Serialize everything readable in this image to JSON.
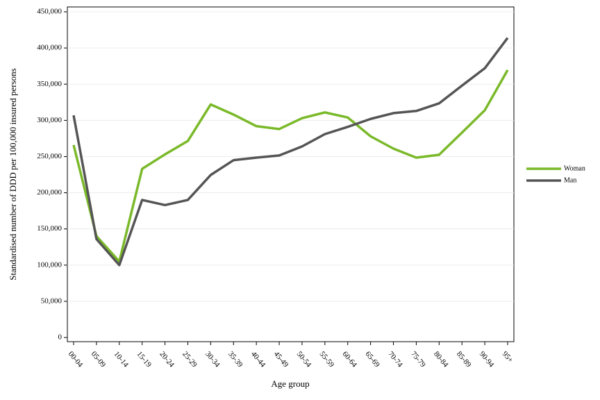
{
  "chart_data": {
    "type": "line",
    "x_label": "Age group",
    "y_label": "Standardised number of DDD per 100,000 insured persons",
    "categories": [
      "00-04",
      "05-09",
      "10-14",
      "15-19",
      "20-24",
      "25-29",
      "30-34",
      "35-39",
      "40-44",
      "45-49",
      "50-54",
      "55-59",
      "60-64",
      "65-69",
      "70-74",
      "75-79",
      "80-84",
      "85-89",
      "90-94",
      "95+"
    ],
    "series": [
      {
        "name": "Woman",
        "color": "#7ab929",
        "values": [
          266000,
          140000,
          105000,
          233000,
          253000,
          271500,
          322000,
          308000,
          292000,
          288000,
          303000,
          311000,
          304000,
          278000,
          261000,
          248500,
          252500,
          283000,
          314000,
          369500
        ]
      },
      {
        "name": "Man",
        "color": "#555555",
        "values": [
          307000,
          136000,
          100000,
          190000,
          183000,
          190000,
          224500,
          245000,
          248500,
          251500,
          264000,
          281000,
          291000,
          302000,
          310000,
          313000,
          323500,
          348000,
          372000,
          414000
        ]
      }
    ],
    "ylim": [
      0,
      450000
    ],
    "yticks": [
      0,
      {
        "value": 50000,
        "label": "50,000"
      },
      {
        "value": 100000,
        "label": "100,000"
      },
      {
        "value": 150000,
        "label": "150,000"
      },
      {
        "value": 200000,
        "label": "200,000"
      },
      {
        "value": 250000,
        "label": "250,000"
      },
      {
        "value": 300000,
        "label": "300,000"
      },
      {
        "value": 350000,
        "label": "350,000"
      },
      {
        "value": 400000,
        "label": "400,000"
      },
      {
        "value": 450000,
        "label": "450,000"
      }
    ],
    "grid": true,
    "legend": "right"
  }
}
